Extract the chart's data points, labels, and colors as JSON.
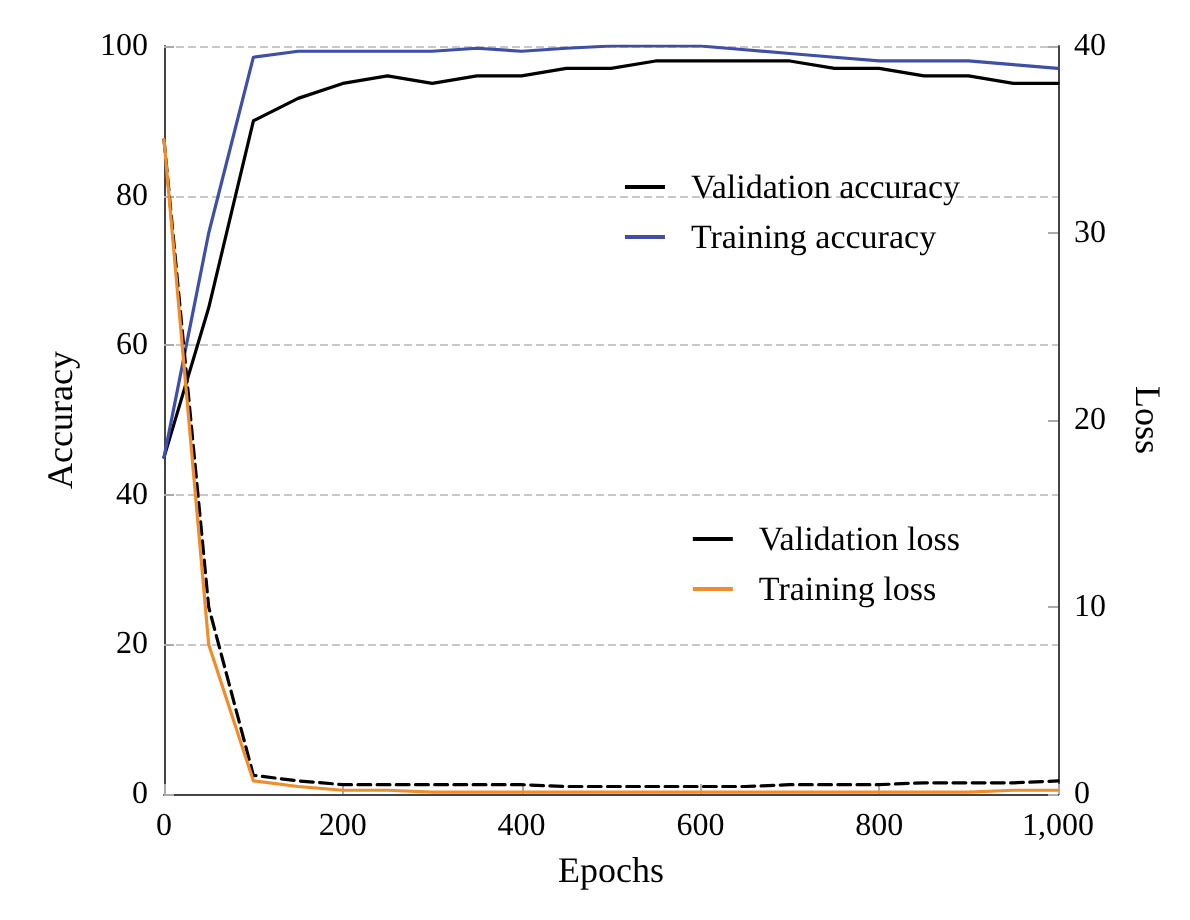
{
  "chart_data": {
    "type": "line",
    "xlabel": "Epochs",
    "ylabel": "Accuracy",
    "y2label": "Loss",
    "x": [
      0,
      50,
      100,
      150,
      200,
      250,
      300,
      350,
      400,
      450,
      500,
      550,
      600,
      650,
      700,
      750,
      800,
      850,
      900,
      950,
      1000
    ],
    "series": [
      {
        "name": "Validation accuracy",
        "color": "#000000",
        "values": [
          45,
          65,
          90,
          93,
          95,
          96,
          95,
          96,
          96,
          97,
          97,
          98,
          98,
          98,
          98,
          97,
          97,
          96,
          96,
          95,
          95
        ]
      },
      {
        "name": "Training accuracy",
        "color": "#3f4fa8",
        "values": [
          45,
          75,
          98.5,
          99.3,
          99.3,
          99.3,
          99.3,
          99.7,
          99.3,
          99.7,
          100,
          100,
          100,
          99.5,
          99,
          98.5,
          98,
          98,
          98,
          97.5,
          97
        ]
      },
      {
        "name": "Validation loss",
        "color": "#000000",
        "axis": "y2",
        "line_style": "dashed",
        "values": [
          35,
          10,
          1,
          0.7,
          0.5,
          0.5,
          0.5,
          0.5,
          0.5,
          0.4,
          0.4,
          0.4,
          0.4,
          0.4,
          0.5,
          0.5,
          0.5,
          0.6,
          0.6,
          0.6,
          0.7
        ]
      },
      {
        "name": "Training loss",
        "color": "#f28c28",
        "axis": "y2",
        "values": [
          35,
          8,
          0.7,
          0.4,
          0.2,
          0.2,
          0.1,
          0.1,
          0.1,
          0.1,
          0.1,
          0.1,
          0.1,
          0.1,
          0.1,
          0.1,
          0.1,
          0.1,
          0.1,
          0.2,
          0.2
        ]
      }
    ],
    "xlim": [
      0,
      1000
    ],
    "xticks": [
      0,
      200,
      400,
      600,
      800,
      {
        "value": 1000,
        "label": "1,000"
      }
    ],
    "ylim": [
      0,
      100
    ],
    "yticks": [
      0,
      20,
      40,
      60,
      80,
      100
    ],
    "y2lim": [
      0,
      40
    ],
    "y2ticks": [
      0,
      10,
      20,
      30,
      40
    ],
    "grid": "y",
    "legend": "right",
    "marker": "none",
    "line_style": "solid"
  }
}
